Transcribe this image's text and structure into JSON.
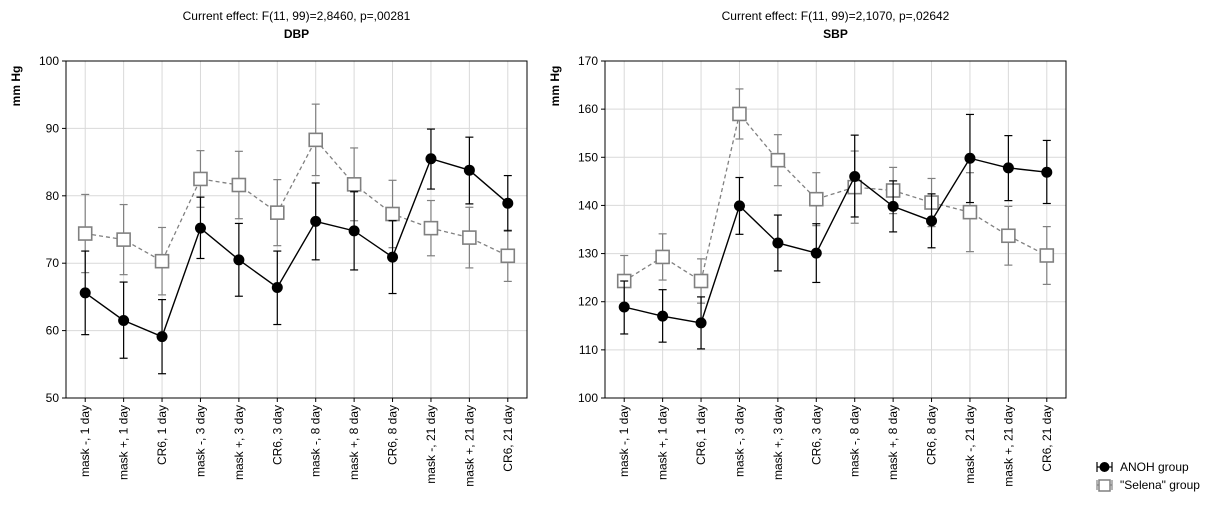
{
  "chart_data": [
    {
      "type": "line",
      "subtitle": "Current effect: F(11, 99)=2,8460, p=,00281",
      "title": "DBP",
      "ylabel": "mm Hg",
      "xlabel": "",
      "ylim": [
        50,
        100
      ],
      "yticks": [
        50,
        60,
        70,
        80,
        90,
        100
      ],
      "grid": true,
      "categories": [
        "mask -, 1 day",
        "mask +, 1 day",
        "CR6, 1 day",
        "mask -, 3 day",
        "mask +, 3 day",
        "CR6, 3 day",
        "mask -, 8 day",
        "mask +, 8 day",
        "CR6, 8 day",
        "mask -, 21 day",
        "mask +, 21 day",
        "CR6, 21 day"
      ],
      "series": [
        {
          "name": "ANOH group",
          "color": "#000000",
          "values": [
            65.6,
            61.5,
            59.1,
            75.2,
            70.5,
            66.4,
            76.2,
            74.8,
            70.9,
            85.5,
            83.8,
            78.9
          ],
          "err_low": [
            59.4,
            55.9,
            53.6,
            70.7,
            65.1,
            60.9,
            70.5,
            69.0,
            65.5,
            81.0,
            78.8,
            74.8
          ],
          "err_high": [
            71.8,
            67.2,
            64.6,
            79.8,
            75.9,
            71.8,
            81.9,
            80.6,
            76.3,
            89.9,
            88.7,
            83.0
          ]
        },
        {
          "name": "\"Selena\" group",
          "color": "#808080",
          "values": [
            74.4,
            73.5,
            70.3,
            82.5,
            81.6,
            77.5,
            88.3,
            81.7,
            77.3,
            75.2,
            73.8,
            71.1
          ],
          "err_low": [
            68.6,
            68.3,
            65.3,
            78.3,
            76.6,
            72.6,
            83.0,
            76.3,
            72.3,
            71.1,
            69.3,
            67.3
          ],
          "err_high": [
            80.2,
            78.7,
            75.3,
            86.7,
            86.6,
            82.4,
            93.6,
            87.1,
            82.3,
            79.3,
            78.3,
            74.9
          ]
        }
      ]
    },
    {
      "type": "line",
      "subtitle": "Current effect: F(11, 99)=2,1070, p=,02642",
      "title": "SBP",
      "ylabel": "mm Hg",
      "xlabel": "",
      "ylim": [
        100,
        170
      ],
      "yticks": [
        100,
        110,
        120,
        130,
        140,
        150,
        160,
        170
      ],
      "grid": true,
      "categories": [
        "mask -, 1 day",
        "mask +, 1 day",
        "CR6, 1 day",
        "mask -, 3 day",
        "mask +, 3 day",
        "CR6, 3 day",
        "mask -, 8 day",
        "mask +, 8 day",
        "CR6, 8 day",
        "mask -, 21 day",
        "mask +, 21 day",
        "CR6, 21 day"
      ],
      "series": [
        {
          "name": "ANOH group",
          "color": "#000000",
          "values": [
            118.9,
            117.0,
            115.6,
            139.9,
            132.2,
            130.1,
            146.0,
            139.8,
            136.8,
            149.8,
            147.8,
            146.9
          ],
          "err_low": [
            113.3,
            111.6,
            110.2,
            134.0,
            126.4,
            124.0,
            137.6,
            134.5,
            131.2,
            140.6,
            141.0,
            140.4
          ],
          "err_high": [
            124.3,
            122.5,
            121.0,
            145.8,
            138.0,
            136.2,
            154.6,
            145.1,
            142.4,
            158.9,
            154.5,
            153.5
          ]
        },
        {
          "name": "\"Selena\" group",
          "color": "#808080",
          "values": [
            124.3,
            129.3,
            124.3,
            159.0,
            149.4,
            141.3,
            143.8,
            143.1,
            140.6,
            138.6,
            133.7,
            129.6
          ],
          "err_low": [
            119.0,
            124.5,
            119.7,
            153.8,
            144.1,
            135.8,
            136.3,
            138.3,
            135.6,
            130.4,
            127.6,
            123.6
          ],
          "err_high": [
            129.6,
            134.1,
            128.9,
            164.2,
            154.7,
            146.8,
            151.3,
            147.9,
            145.6,
            146.8,
            139.8,
            135.6
          ]
        }
      ]
    }
  ],
  "legend": {
    "position": "bottom-right",
    "items": [
      {
        "label": "ANOH group",
        "color": "#000000",
        "marker": "filled-circle"
      },
      {
        "label": "\"Selena\" group",
        "color": "#808080",
        "marker": "open-square"
      }
    ]
  }
}
